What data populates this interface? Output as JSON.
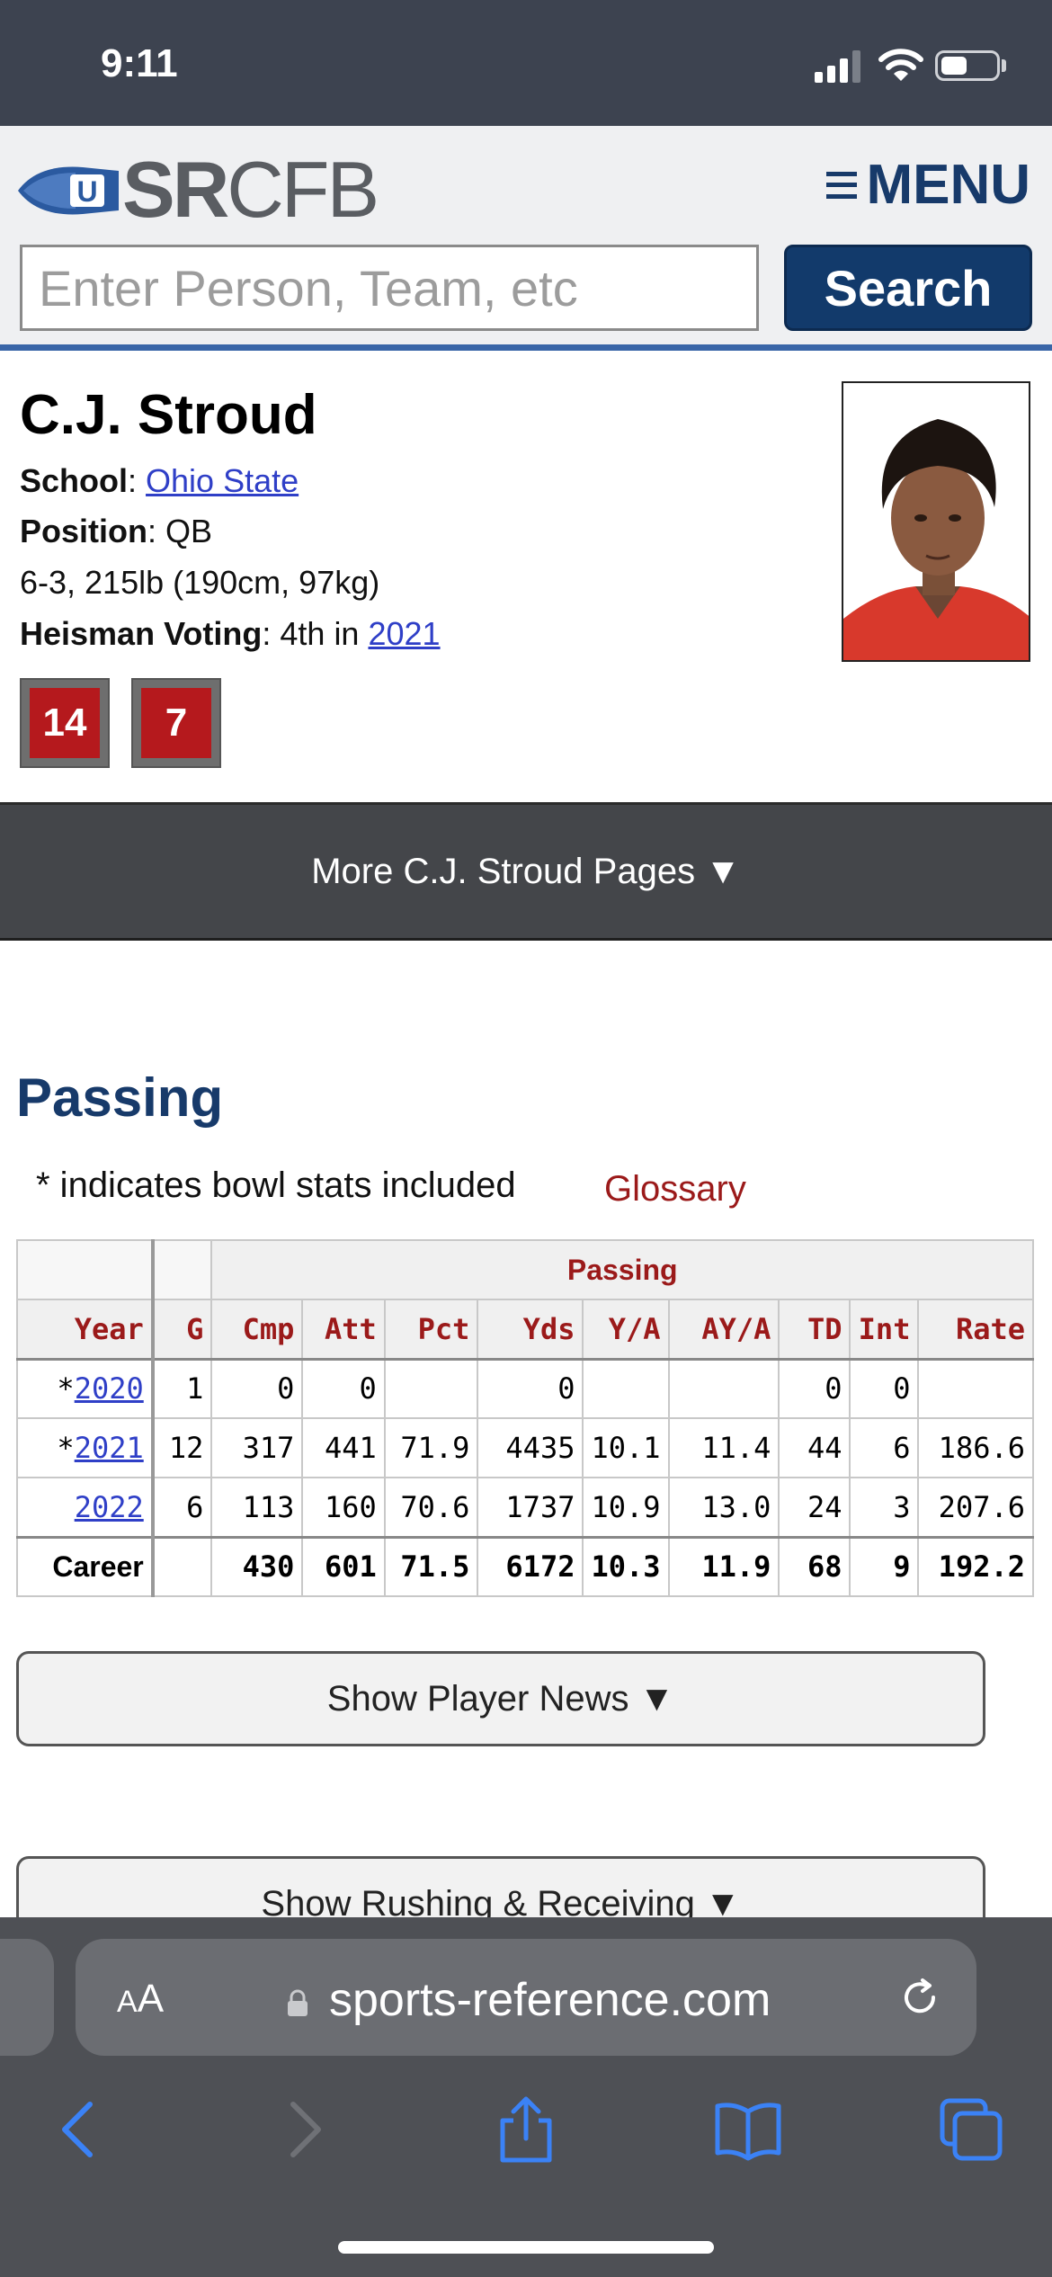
{
  "status_bar": {
    "time": "9:11"
  },
  "header": {
    "logo_bold": "SR",
    "logo_light": "CFB",
    "menu_label": "MENU",
    "search_placeholder": "Enter Person, Team, etc",
    "search_button": "Search"
  },
  "player": {
    "name": "C.J. Stroud",
    "school_label": "School",
    "school": "Ohio State",
    "position_label": "Position",
    "position": "QB",
    "measurements": "6-3, 215lb (190cm, 97kg)",
    "heisman_label": "Heisman Voting",
    "heisman_text": "4th in",
    "heisman_year": "2021",
    "jersey_numbers": [
      "14",
      "7"
    ]
  },
  "more_pages": "More C.J. Stroud Pages ▼",
  "passing": {
    "title": "Passing",
    "note": "* indicates bowl stats included",
    "glossary": "Glossary",
    "group_header": "Passing",
    "columns": [
      "Year",
      "G",
      "Cmp",
      "Att",
      "Pct",
      "Yds",
      "Y/A",
      "AY/A",
      "TD",
      "Int",
      "Rate"
    ],
    "rows": [
      {
        "prefix": "*",
        "year": "2020",
        "g": "1",
        "cmp": "0",
        "att": "0",
        "pct": "",
        "yds": "0",
        "ya": "",
        "aya": "",
        "td": "0",
        "int": "0",
        "rate": ""
      },
      {
        "prefix": "*",
        "year": "2021",
        "g": "12",
        "cmp": "317",
        "att": "441",
        "pct": "71.9",
        "yds": "4435",
        "ya": "10.1",
        "aya": "11.4",
        "td": "44",
        "int": "6",
        "rate": "186.6"
      },
      {
        "prefix": "",
        "year": "2022",
        "g": "6",
        "cmp": "113",
        "att": "160",
        "pct": "70.6",
        "yds": "1737",
        "ya": "10.9",
        "aya": "13.0",
        "td": "24",
        "int": "3",
        "rate": "207.6"
      }
    ],
    "career": {
      "label": "Career",
      "g": "",
      "cmp": "430",
      "att": "601",
      "pct": "71.5",
      "yds": "6172",
      "ya": "10.3",
      "aya": "11.9",
      "td": "68",
      "int": "9",
      "rate": "192.2"
    }
  },
  "buttons": {
    "player_news": "Show Player News ▼",
    "rushing_receiving": "Show Rushing & Receiving ▼"
  },
  "browser": {
    "aa_large": "A",
    "aa_small": "A",
    "url": "sports-reference.com"
  },
  "colors": {
    "status_bar_bg": "#3d4350",
    "header_bg": "#eff0f2",
    "navy": "#173a6a",
    "accent_blue": "#3a66a8",
    "table_header_red": "#9b1a1a",
    "jersey_red": "#b5191d",
    "ios_blue": "#3b82f6"
  }
}
